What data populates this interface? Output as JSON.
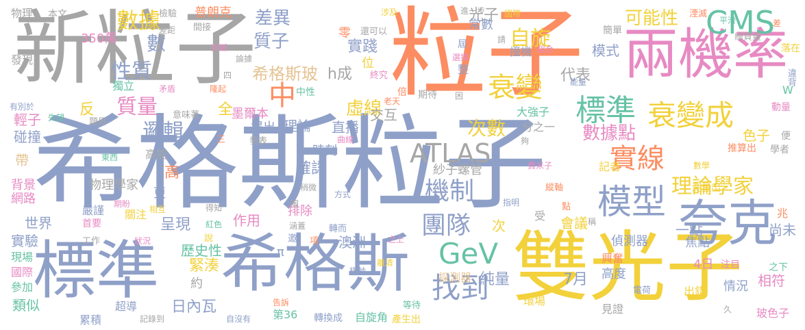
{
  "palette": {
    "blue": "#8fa0c8",
    "gray": "#a6a6a6",
    "orange": "#fc8d62",
    "pink": "#e78ac3",
    "green": "#66c2a5",
    "yellow": "#f2d13b",
    "lime": "#a6d854",
    "tan": "#e5c494"
  },
  "words": [
    {
      "id": "w0",
      "text": "希格斯粒子",
      "color": "blue"
    },
    {
      "id": "w1",
      "text": "新粒子",
      "color": "gray"
    },
    {
      "id": "w2",
      "text": "粒子",
      "color": "orange"
    },
    {
      "id": "w3",
      "text": "兩機率",
      "color": "pink"
    },
    {
      "id": "w4",
      "text": "雙光子",
      "color": "yellow"
    },
    {
      "id": "w5",
      "text": "標準",
      "color": "blue"
    },
    {
      "id": "w6",
      "text": "希格斯",
      "color": "blue"
    },
    {
      "id": "w7",
      "text": "夸克",
      "color": "blue"
    },
    {
      "id": "w8",
      "text": "CMS",
      "color": "green"
    },
    {
      "id": "w9",
      "text": "衰變成",
      "color": "yellow"
    },
    {
      "id": "w10",
      "text": "衰變",
      "color": "yellow"
    },
    {
      "id": "w11",
      "text": "標準",
      "color": "green"
    },
    {
      "id": "w12",
      "text": "模型",
      "color": "blue"
    },
    {
      "id": "w13",
      "text": "實線",
      "color": "orange"
    },
    {
      "id": "w14",
      "text": "數據",
      "color": "yellow"
    },
    {
      "id": "w15",
      "text": "質子",
      "color": "blue"
    },
    {
      "id": "w16",
      "text": "性質",
      "color": "blue"
    },
    {
      "id": "w17",
      "text": "質量",
      "color": "pink"
    },
    {
      "id": "w18",
      "text": "邏輯",
      "color": "blue"
    },
    {
      "id": "w19",
      "text": "ATLAS",
      "color": "gray"
    },
    {
      "id": "w20",
      "text": "機制",
      "color": "blue"
    },
    {
      "id": "w21",
      "text": "團隊",
      "color": "blue"
    },
    {
      "id": "w22",
      "text": "GeV",
      "color": "green"
    },
    {
      "id": "w23",
      "text": "找到",
      "color": "blue"
    },
    {
      "id": "w24",
      "text": "自旋",
      "color": "yellow"
    },
    {
      "id": "w25",
      "text": "可能性",
      "color": "yellow"
    },
    {
      "id": "w26",
      "text": "理論學家",
      "color": "yellow"
    },
    {
      "id": "w27",
      "text": "虛線",
      "color": "yellow"
    },
    {
      "id": "w28",
      "text": "中",
      "color": "orange"
    },
    {
      "id": "w29",
      "text": "差異",
      "color": "blue"
    },
    {
      "id": "w30",
      "text": "希格斯玻",
      "color": "tan"
    },
    {
      "id": "w31",
      "text": "次數",
      "color": "yellow"
    },
    {
      "id": "w32",
      "text": "數據點",
      "color": "pink"
    },
    {
      "id": "w33",
      "text": "光子",
      "color": "gray"
    },
    {
      "id": "w34",
      "text": "實踐",
      "color": "blue"
    },
    {
      "id": "w35",
      "text": "普朗克",
      "color": "orange"
    },
    {
      "id": "w36",
      "text": "數",
      "color": "blue"
    },
    {
      "id": "w37",
      "text": "350萬",
      "color": "pink"
    },
    {
      "id": "w38",
      "text": "物理",
      "color": "gray"
    },
    {
      "id": "w39",
      "text": "本文",
      "color": "gray"
    },
    {
      "id": "w40",
      "text": "h成",
      "color": "gray"
    },
    {
      "id": "w41",
      "text": "代表",
      "color": "gray"
    },
    {
      "id": "w42",
      "text": "全",
      "color": "yellow"
    },
    {
      "id": "w43",
      "text": "墨爾本",
      "color": "pink"
    },
    {
      "id": "w44",
      "text": "輕子",
      "color": "pink"
    },
    {
      "id": "w45",
      "text": "碰撞",
      "color": "blue"
    },
    {
      "id": "w46",
      "text": "世界",
      "color": "blue"
    },
    {
      "id": "w47",
      "text": "實驗",
      "color": "blue"
    },
    {
      "id": "w48",
      "text": "背景",
      "color": "pink"
    },
    {
      "id": "w49",
      "text": "網路",
      "color": "pink"
    },
    {
      "id": "w50",
      "text": "現場",
      "color": "green"
    },
    {
      "id": "w51",
      "text": "國際",
      "color": "pink"
    },
    {
      "id": "w52",
      "text": "參加",
      "color": "green"
    },
    {
      "id": "w53",
      "text": "類似",
      "color": "green"
    },
    {
      "id": "w54",
      "text": "累積",
      "color": "blue"
    },
    {
      "id": "w55",
      "text": "超導",
      "color": "blue"
    },
    {
      "id": "w56",
      "text": "第36",
      "color": "green"
    },
    {
      "id": "w57",
      "text": "轉換成",
      "color": "blue"
    },
    {
      "id": "w58",
      "text": "自旋角",
      "color": "green"
    },
    {
      "id": "w59",
      "text": "產生出",
      "color": "yellow"
    },
    {
      "id": "w60",
      "text": "日內瓦",
      "color": "blue"
    },
    {
      "id": "w61",
      "text": "純量",
      "color": "blue"
    },
    {
      "id": "w62",
      "text": "7月",
      "color": "blue"
    },
    {
      "id": "w63",
      "text": "4日",
      "color": "pink"
    },
    {
      "id": "w64",
      "text": "相符",
      "color": "pink"
    },
    {
      "id": "w65",
      "text": "情況",
      "color": "blue"
    },
    {
      "id": "w66",
      "text": "出錯",
      "color": "yellow"
    },
    {
      "id": "w67",
      "text": "玻色子",
      "color": "pink"
    },
    {
      "id": "w68",
      "text": "注目",
      "color": "pink"
    },
    {
      "id": "w69",
      "text": "高度",
      "color": "blue"
    },
    {
      "id": "w70",
      "text": "焦點",
      "color": "blue"
    },
    {
      "id": "w71",
      "text": "偵測器",
      "color": "blue"
    },
    {
      "id": "w72",
      "text": "一點",
      "color": "blue"
    },
    {
      "id": "w73",
      "text": "尚未",
      "color": "blue"
    },
    {
      "id": "w74",
      "text": "緊湊",
      "color": "yellow"
    },
    {
      "id": "w75",
      "text": "澳洲",
      "color": "blue"
    },
    {
      "id": "w76",
      "text": "探測器",
      "color": "tan"
    },
    {
      "id": "w77",
      "text": "直播",
      "color": "blue"
    },
    {
      "id": "w78",
      "text": "交互",
      "color": "gray"
    },
    {
      "id": "w79",
      "text": "理論",
      "color": "blue"
    },
    {
      "id": "w80",
      "text": "提出",
      "color": "blue"
    },
    {
      "id": "w81",
      "text": "確認",
      "color": "blue"
    },
    {
      "id": "w82",
      "text": "時刻",
      "color": "blue"
    },
    {
      "id": "w83",
      "text": "作用",
      "color": "pink"
    },
    {
      "id": "w84",
      "text": "排除",
      "color": "pink"
    },
    {
      "id": "w85",
      "text": "歷史性",
      "color": "green"
    },
    {
      "id": "w86",
      "text": "呈現",
      "color": "blue"
    },
    {
      "id": "w87",
      "text": "物理學家",
      "color": "gray"
    },
    {
      "id": "w88",
      "text": "高",
      "color": "orange"
    },
    {
      "id": "w89",
      "text": "更",
      "color": "blue"
    },
    {
      "id": "w90",
      "text": "帶",
      "color": "tan"
    },
    {
      "id": "w91",
      "text": "高能",
      "color": "gray"
    },
    {
      "id": "w92",
      "text": "反",
      "color": "yellow"
    },
    {
      "id": "w93",
      "text": "獨立",
      "color": "green"
    },
    {
      "id": "w94",
      "text": "發現",
      "color": "gray"
    },
    {
      "id": "w95",
      "text": "模式",
      "color": "blue"
    },
    {
      "id": "w96",
      "text": "大強子",
      "color": "green"
    },
    {
      "id": "w97",
      "text": "撞機",
      "color": "blue"
    },
    {
      "id": "w98",
      "text": "色子",
      "color": "yellow"
    },
    {
      "id": "w99",
      "text": "會議",
      "color": "yellow"
    },
    {
      "id": "w100",
      "text": "分之一",
      "color": "gray"
    },
    {
      "id": "w101",
      "text": "紗子螺管",
      "color": "gray"
    },
    {
      "id": "w102",
      "text": "約",
      "color": "gray"
    },
    {
      "id": "w103",
      "text": "π",
      "color": "blue"
    },
    {
      "id": "w104",
      "text": "記者",
      "color": "yellow"
    },
    {
      "id": "w105",
      "text": "兆",
      "color": "orange"
    },
    {
      "id": "w106",
      "text": "次",
      "color": "yellow"
    },
    {
      "id": "w107",
      "text": "環場",
      "color": "yellow"
    },
    {
      "id": "w108",
      "text": "見證",
      "color": "gray"
    },
    {
      "id": "w109",
      "text": "興奮",
      "color": "orange"
    },
    {
      "id": "w110",
      "text": "之下",
      "color": "green"
    },
    {
      "id": "w111",
      "text": "測量出",
      "color": "yellow"
    },
    {
      "id": "w112",
      "text": "推算出",
      "color": "orange"
    },
    {
      "id": "w113",
      "text": "學者",
      "color": "gray"
    },
    {
      "id": "w114",
      "text": "動量",
      "color": "pink"
    },
    {
      "id": "w115",
      "text": "違背",
      "color": "blue"
    },
    {
      "id": "w116",
      "text": "落在",
      "color": "yellow"
    },
    {
      "id": "w117",
      "text": "總質量",
      "color": "gray"
    },
    {
      "id": "w118",
      "text": "平滑",
      "color": "green"
    },
    {
      "id": "w119",
      "text": "湮滅",
      "color": "orange"
    },
    {
      "id": "w120",
      "text": "簡單",
      "color": "gray"
    },
    {
      "id": "w121",
      "text": "常數",
      "color": "blue"
    },
    {
      "id": "w122",
      "text": "進一步",
      "color": "gray"
    },
    {
      "id": "w123",
      "text": "涉及",
      "color": "yellow"
    },
    {
      "id": "w124",
      "text": "國際",
      "color": "yellow"
    },
    {
      "id": "w125",
      "text": "還可以",
      "color": "gray"
    },
    {
      "id": "w126",
      "text": "零",
      "color": "orange"
    },
    {
      "id": "w127",
      "text": "位",
      "color": "yellow"
    },
    {
      "id": "w128",
      "text": "終究",
      "color": "pink"
    },
    {
      "id": "w129",
      "text": "檢驗",
      "color": "gray"
    },
    {
      "id": "w130",
      "text": "間接",
      "color": "gray"
    },
    {
      "id": "w131",
      "text": "差距",
      "color": "gray"
    },
    {
      "id": "w132",
      "text": "判斷",
      "color": "pink"
    },
    {
      "id": "w133",
      "text": "論據",
      "color": "gray"
    },
    {
      "id": "w134",
      "text": "隆起",
      "color": "orange"
    },
    {
      "id": "w135",
      "text": "矛盾",
      "color": "pink"
    },
    {
      "id": "w136",
      "text": "四",
      "color": "gray"
    },
    {
      "id": "w137",
      "text": "有別於",
      "color": "blue"
    },
    {
      "id": "w138",
      "text": "失望",
      "color": "green"
    },
    {
      "id": "w139",
      "text": "題目",
      "color": "gray"
    },
    {
      "id": "w140",
      "text": "意味著",
      "color": "gray"
    },
    {
      "id": "w141",
      "text": "三",
      "color": "orange"
    },
    {
      "id": "w142",
      "text": "東西",
      "color": "green"
    },
    {
      "id": "w143",
      "text": "發表",
      "color": "gray"
    },
    {
      "id": "w144",
      "text": "期盼",
      "color": "pink"
    },
    {
      "id": "w145",
      "text": "相互",
      "color": "yellow"
    },
    {
      "id": "w146",
      "text": "得知",
      "color": "gray"
    },
    {
      "id": "w147",
      "text": "紅色",
      "color": "green"
    },
    {
      "id": "w148",
      "text": "圖",
      "color": "gray"
    },
    {
      "id": "w149",
      "text": "嚴謹",
      "color": "blue"
    },
    {
      "id": "w150",
      "text": "首要",
      "color": "pink"
    },
    {
      "id": "w151",
      "text": "關注",
      "color": "yellow"
    },
    {
      "id": "w152",
      "text": "工作",
      "color": "gray"
    },
    {
      "id": "w153",
      "text": "狀況",
      "color": "pink"
    },
    {
      "id": "w154",
      "text": "說",
      "color": "yellow"
    },
    {
      "id": "w155",
      "text": "涵蓋",
      "color": "gray"
    },
    {
      "id": "w156",
      "text": "邀",
      "color": "blue"
    },
    {
      "id": "w157",
      "text": "項",
      "color": "orange"
    },
    {
      "id": "w158",
      "text": "轉而",
      "color": "blue"
    },
    {
      "id": "w159",
      "text": "記錄到",
      "color": "gray"
    },
    {
      "id": "w160",
      "text": "告訴",
      "color": "orange"
    },
    {
      "id": "w161",
      "text": "自沒有",
      "color": "blue"
    },
    {
      "id": "w162",
      "text": "等待",
      "color": "green"
    },
    {
      "id": "w163",
      "text": "離清",
      "color": "yellow"
    },
    {
      "id": "w164",
      "text": "橫軸",
      "color": "blue"
    },
    {
      "id": "w165",
      "text": "之上",
      "color": "pink"
    },
    {
      "id": "w166",
      "text": "方式",
      "color": "blue"
    },
    {
      "id": "w167",
      "text": "指明",
      "color": "blue"
    },
    {
      "id": "w168",
      "text": "受",
      "color": "gray"
    },
    {
      "id": "w169",
      "text": "點",
      "color": "orange"
    },
    {
      "id": "w170",
      "text": "稍微",
      "color": "gray"
    },
    {
      "id": "w171",
      "text": "縱軸",
      "color": "orange"
    },
    {
      "id": "w172",
      "text": "費米子",
      "color": "pink"
    },
    {
      "id": "w173",
      "text": "數學",
      "color": "yellow"
    },
    {
      "id": "w174",
      "text": "便",
      "color": "gray"
    },
    {
      "id": "w175",
      "text": "曲線",
      "color": "pink"
    },
    {
      "id": "w176",
      "text": "老天",
      "color": "orange"
    },
    {
      "id": "w177",
      "text": "夠",
      "color": "gray"
    },
    {
      "id": "w178",
      "text": "倍",
      "color": "orange"
    },
    {
      "id": "w179",
      "text": "期待",
      "color": "gray"
    },
    {
      "id": "w180",
      "text": "困",
      "color": "gray"
    },
    {
      "id": "w181",
      "text": "整",
      "color": "blue"
    },
    {
      "id": "w182",
      "text": "選擇",
      "color": "pink"
    },
    {
      "id": "w183",
      "text": "屆",
      "color": "blue"
    },
    {
      "id": "w184",
      "text": "組合",
      "color": "pink"
    },
    {
      "id": "w185",
      "text": "能量",
      "color": "blue"
    },
    {
      "id": "w186",
      "text": "中性",
      "color": "green"
    },
    {
      "id": "w187",
      "text": "W",
      "color": "green"
    },
    {
      "id": "w188",
      "text": "請",
      "color": "gray"
    },
    {
      "id": "w189",
      "text": "稱",
      "color": "gray"
    },
    {
      "id": "w190",
      "text": "久",
      "color": "gray"
    },
    {
      "id": "w191",
      "text": "電荷",
      "color": "blue"
    },
    {
      "id": "w192",
      "text": "差",
      "color": "orange"
    }
  ]
}
